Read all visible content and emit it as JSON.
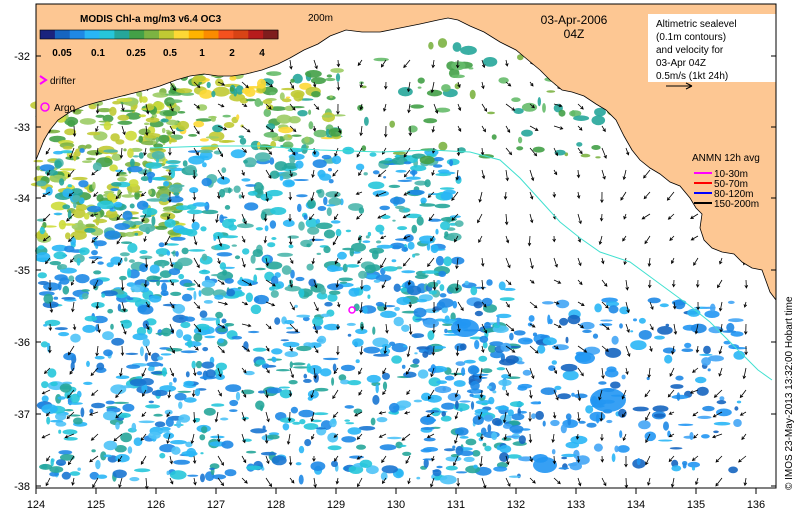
{
  "colorbar": {
    "title": "MODIS Chl-a mg/m3 v6.4 OC3",
    "ticks": [
      "0.05",
      "0.1",
      "0.25",
      "0.5",
      "1",
      "2",
      "4"
    ],
    "colors": [
      "#1a237e",
      "#1565c0",
      "#1e88e5",
      "#29b6f6",
      "#26c6da",
      "#26a69a",
      "#43a047",
      "#7cb342",
      "#c0ca33",
      "#fdd835",
      "#ffb300",
      "#fb8c00",
      "#f4511e",
      "#d84315",
      "#b71c1c",
      "#7f1d1d"
    ]
  },
  "isobath_label": "200m",
  "date_text": "03-Apr-2006",
  "time_text": "04Z",
  "altimetry_note": {
    "lines": [
      "Altimetric sealevel",
      "(0.1m contours)",
      "and velocity for",
      "03-Apr 04Z",
      "0.5m/s (1kt 24h)"
    ]
  },
  "legend_left": {
    "drifter_label": "drifter",
    "argo_label": "Argo",
    "drifter_color": "#ff00ff",
    "argo_color": "#ff00ff"
  },
  "anmn_legend": {
    "title": "ANMN 12h avg",
    "items": [
      {
        "label": "10-30m",
        "color": "#ff00ff"
      },
      {
        "label": "50-70m",
        "color": "#ff0000"
      },
      {
        "label": "80-120m",
        "color": "#0000ff"
      },
      {
        "label": "150-200m",
        "color": "#000000"
      }
    ]
  },
  "y_ticks": [
    "-32",
    "-33",
    "-34",
    "-35",
    "-36",
    "-37",
    "-38"
  ],
  "x_ticks": [
    "124",
    "125",
    "126",
    "127",
    "128",
    "129",
    "130",
    "131",
    "132",
    "133",
    "134",
    "135",
    "136"
  ],
  "credit": "© IMOS 23-May-2013 13:32:00 Hobart time",
  "colors": {
    "land": "#fdc793",
    "ocean": "#ffffff",
    "isobath": "#40e0d0",
    "arrow": "#000000"
  }
}
